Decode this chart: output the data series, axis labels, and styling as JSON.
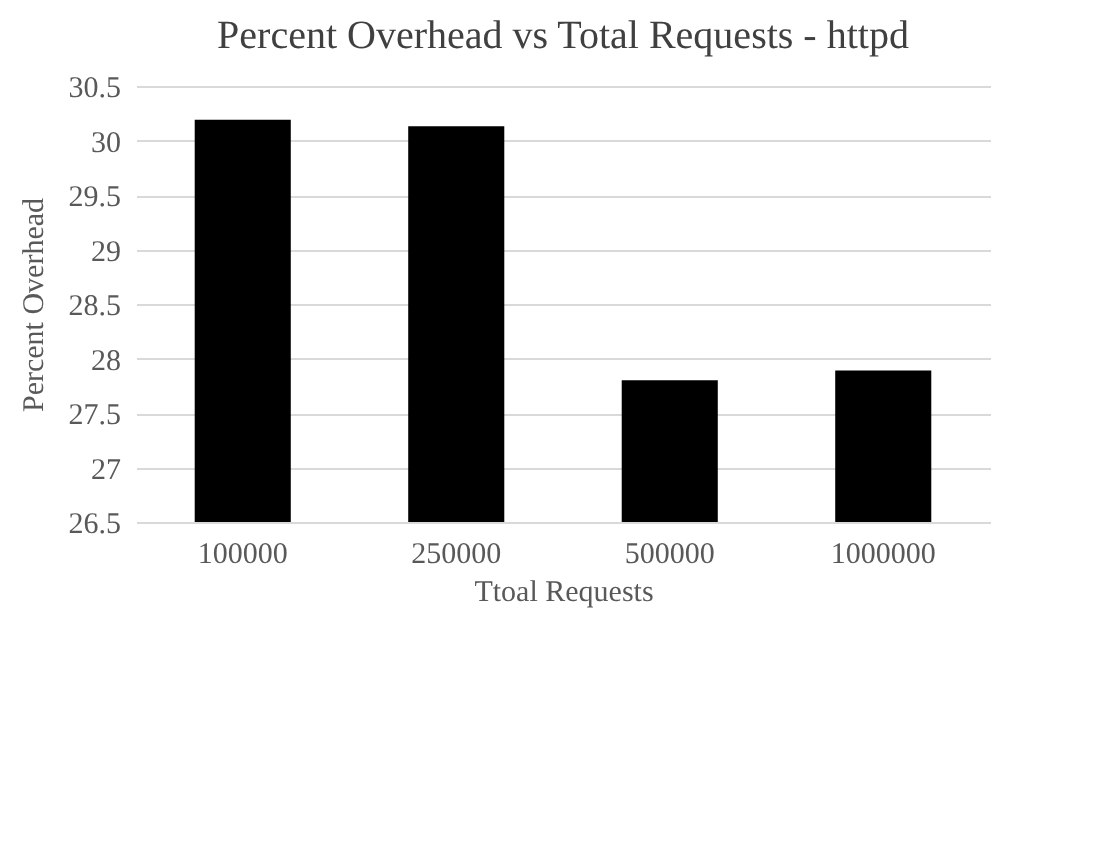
{
  "chart_data": {
    "type": "bar",
    "title": "Percent Overhead vs Total Requests - httpd",
    "xlabel": "Ttoal Requests",
    "ylabel": "Percent Overhead",
    "categories": [
      "100000",
      "250000",
      "500000",
      "1000000"
    ],
    "series": [
      {
        "color": "#000000",
        "values": [
          30.19,
          30.13,
          27.8,
          27.89
        ]
      }
    ],
    "ylim": [
      26.5,
      30.5
    ],
    "yticks": [
      26.5,
      27,
      27.5,
      28,
      28.5,
      29,
      29.5,
      30,
      30.5
    ],
    "grid": "y"
  }
}
